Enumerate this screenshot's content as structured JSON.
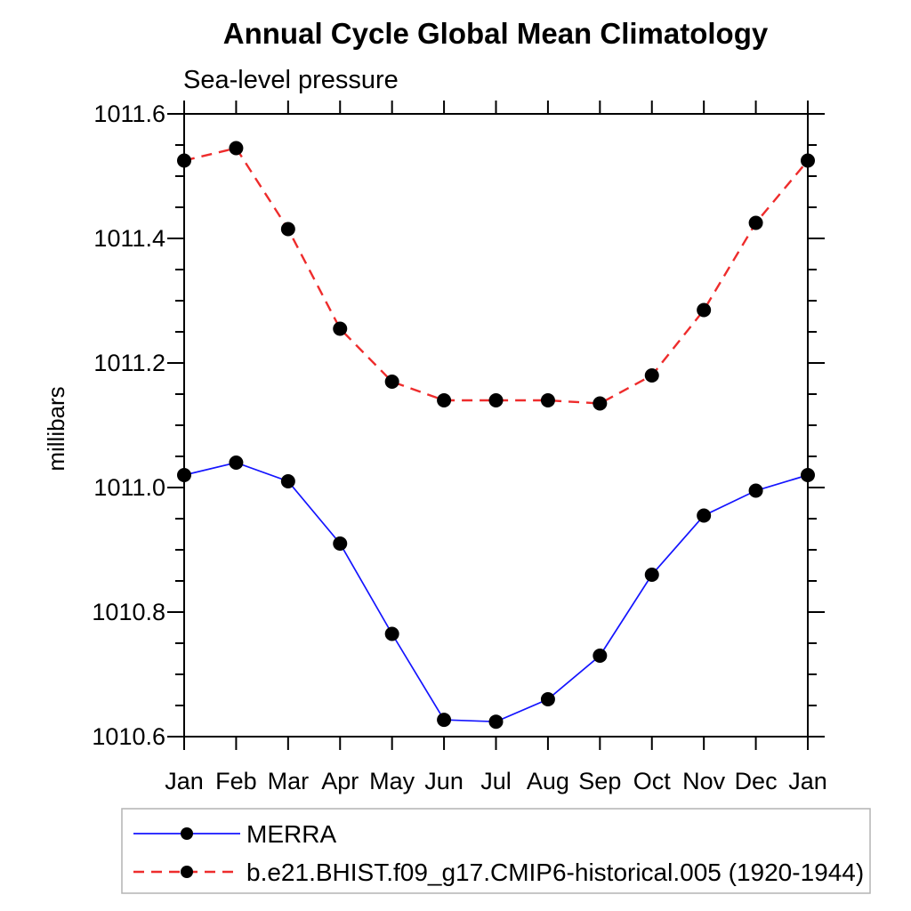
{
  "chart_data": {
    "type": "line",
    "title": "Annual Cycle Global Mean Climatology",
    "subtitle": "Sea-level pressure",
    "ylabel": "millibars",
    "xlabel": "",
    "categories": [
      "Jan",
      "Feb",
      "Mar",
      "Apr",
      "May",
      "Jun",
      "Jul",
      "Aug",
      "Sep",
      "Oct",
      "Nov",
      "Dec",
      "Jan"
    ],
    "ylim": [
      1010.6,
      1011.6
    ],
    "ytick_step": 0.2,
    "yminor_step": 0.05,
    "ytick_labels": [
      "1010.6",
      "1010.8",
      "1011.0",
      "1011.2",
      "1011.4",
      "1011.6"
    ],
    "grid": false,
    "legend_position": "bottom",
    "legend_border_color": "#b4b4b4",
    "axis_color": "#000000",
    "marker_color": "#000000",
    "series": [
      {
        "name": "MERRA",
        "color": "#1414ff",
        "style": "solid",
        "marker": "circle",
        "values": [
          1011.02,
          1011.04,
          1011.01,
          1010.91,
          1010.765,
          1010.627,
          1010.624,
          1010.66,
          1010.73,
          1010.86,
          1010.955,
          1010.995,
          1011.02
        ]
      },
      {
        "name": "b.e21.BHIST.f09_g17.CMIP6-historical.005 (1920-1944)",
        "color": "#ee2c2c",
        "style": "dashed",
        "marker": "circle",
        "values": [
          1011.525,
          1011.545,
          1011.415,
          1011.255,
          1011.17,
          1011.14,
          1011.14,
          1011.14,
          1011.135,
          1011.18,
          1011.285,
          1011.425,
          1011.525
        ]
      }
    ]
  }
}
